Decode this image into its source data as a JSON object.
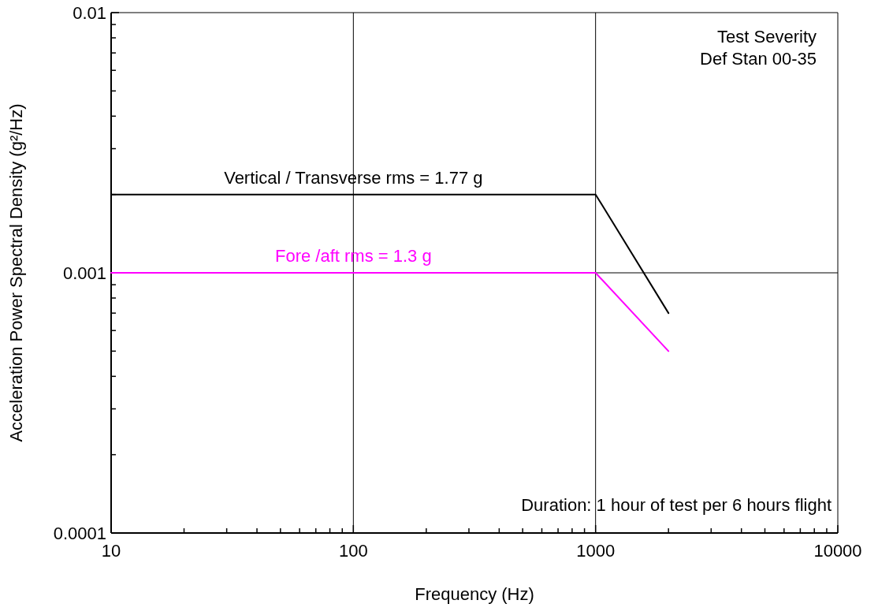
{
  "chart_data": {
    "type": "line",
    "xlabel": "Frequency (Hz)",
    "ylabel": "Acceleration Power Spectral Density (g²/Hz)",
    "log": "xy",
    "grid": true,
    "xlim": [
      10,
      10000
    ],
    "ylim": [
      0.0001,
      0.01
    ],
    "xticks": [
      10,
      {
        "value": 20,
        "label": null
      },
      {
        "value": 30,
        "label": null
      },
      {
        "value": 40,
        "label": null
      },
      {
        "value": 50,
        "label": null
      },
      {
        "value": 60,
        "label": null
      },
      {
        "value": 70,
        "label": null
      },
      {
        "value": 80,
        "label": null
      },
      {
        "value": 90,
        "label": null
      },
      100,
      {
        "value": 200,
        "label": null
      },
      {
        "value": 300,
        "label": null
      },
      {
        "value": 400,
        "label": null
      },
      {
        "value": 500,
        "label": null
      },
      {
        "value": 600,
        "label": null
      },
      {
        "value": 700,
        "label": null
      },
      {
        "value": 800,
        "label": null
      },
      {
        "value": 900,
        "label": null
      },
      1000,
      {
        "value": 2000,
        "label": null
      },
      {
        "value": 3000,
        "label": null
      },
      {
        "value": 4000,
        "label": null
      },
      {
        "value": 5000,
        "label": null
      },
      {
        "value": 6000,
        "label": null
      },
      {
        "value": 7000,
        "label": null
      },
      {
        "value": 8000,
        "label": null
      },
      {
        "value": 9000,
        "label": null
      },
      10000
    ],
    "yticks": [
      0.0001,
      {
        "value": 0.0002,
        "label": null
      },
      {
        "value": 0.0003,
        "label": null
      },
      {
        "value": 0.0004,
        "label": null
      },
      {
        "value": 0.0005,
        "label": null
      },
      {
        "value": 0.0006,
        "label": null
      },
      {
        "value": 0.0007,
        "label": null
      },
      {
        "value": 0.0008,
        "label": null
      },
      {
        "value": 0.0009,
        "label": null
      },
      0.001,
      {
        "value": 0.002,
        "label": null
      },
      {
        "value": 0.003,
        "label": null
      },
      {
        "value": 0.004,
        "label": null
      },
      {
        "value": 0.005,
        "label": null
      },
      {
        "value": 0.006,
        "label": null
      },
      {
        "value": 0.007,
        "label": null
      },
      {
        "value": 0.008,
        "label": null
      },
      {
        "value": 0.009,
        "label": null
      },
      0.01
    ],
    "series": [
      {
        "name": "Vertical / Transverse rms = 1.77 g",
        "color": "#000000",
        "x": [
          10,
          1000,
          2000
        ],
        "values": [
          0.002,
          0.002,
          0.0007
        ]
      },
      {
        "name": "Fore /aft rms = 1.3 g",
        "color": "#ff00ff",
        "x": [
          10,
          1000,
          2000
        ],
        "values": [
          0.001,
          0.001,
          0.0005
        ]
      }
    ],
    "annotations": [
      "Test Severity\nDef Stan 00-35",
      "Duration: 1 hour of test per 6 hours flight"
    ]
  }
}
